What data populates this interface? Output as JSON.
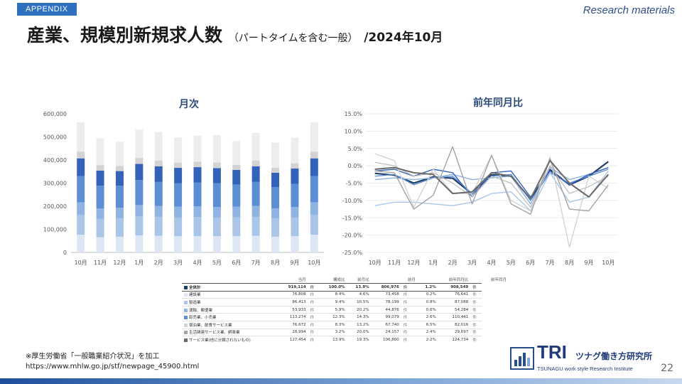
{
  "header": {
    "tag": "APPENDIX",
    "research_label": "Research materials",
    "title_main": "産業、規模別新規求人数",
    "title_sub": "（パートタイムを含む一般）",
    "title_date": "/2024年10月"
  },
  "chart_data": [
    {
      "type": "bar",
      "stacked": true,
      "title": "月次",
      "categories": [
        "10月",
        "11月",
        "12月",
        "1月",
        "2月",
        "3月",
        "4月",
        "5月",
        "6月",
        "7月",
        "8月",
        "9月",
        "10月"
      ],
      "ylim": [
        0,
        600000
      ],
      "yticks": [
        "0",
        "100,000",
        "200,000",
        "300,000",
        "400,000",
        "500,000",
        "600,000"
      ],
      "colors": [
        "#dde7f4",
        "#a9c6e8",
        "#8fb4e1",
        "#5d8ed3",
        "#3562b9",
        "#d3d3d3",
        "#ededed",
        "#a3a3a3",
        "#6b6b6b"
      ],
      "series": [
        {
          "values": [
            76808,
            66000,
            68000,
            74000,
            72000,
            70000,
            71000,
            70000,
            71000,
            72000,
            68000,
            70000,
            76808
          ]
        },
        {
          "values": [
            86413,
            79000,
            80000,
            83000,
            82000,
            81000,
            82000,
            81000,
            81000,
            82000,
            79000,
            81000,
            86413
          ]
        },
        {
          "values": [
            53933,
            45000,
            45000,
            48000,
            47000,
            47000,
            47000,
            46000,
            46000,
            47000,
            44000,
            46000,
            53933
          ]
        },
        {
          "values": [
            113274,
            99000,
            96000,
            108000,
            104000,
            102000,
            102000,
            102000,
            96000,
            104000,
            92000,
            100000,
            113274
          ]
        },
        {
          "values": [
            76672,
            65000,
            63000,
            70000,
            68000,
            66000,
            67000,
            66000,
            63000,
            68000,
            62000,
            66000,
            76672
          ]
        },
        {
          "values": [
            28994,
            24000,
            22000,
            26000,
            25000,
            23000,
            24000,
            24000,
            22000,
            25000,
            22000,
            23000,
            28994
          ]
        },
        {
          "values": [
            127454,
            116000,
            105000,
            122000,
            124000,
            109000,
            112000,
            119000,
            103000,
            119000,
            108000,
            111000,
            127454
          ]
        }
      ]
    },
    {
      "type": "line",
      "title": "前年同月比",
      "categories": [
        "10月",
        "11月",
        "12月",
        "1月",
        "2月",
        "3月",
        "4月",
        "5月",
        "6月",
        "7月",
        "8月",
        "9月",
        "10月"
      ],
      "ylim": [
        -25,
        15
      ],
      "yticks": [
        "15.0%",
        "10.0%",
        "5.0%",
        "0.0%",
        "-5.0%",
        "-10.0%",
        "-15.0%",
        "-20.0%",
        "-25.0%"
      ],
      "series": [
        {
          "color": "#1f3d66",
          "width": 2.2,
          "values": [
            -2.2,
            -2.7,
            -5.0,
            -3.2,
            -3.6,
            -8.1,
            -2.6,
            -3.0,
            -9.6,
            -1.1,
            -5.5,
            -3.0,
            1.2
          ]
        },
        {
          "color": "#5d8ed3",
          "width": 1.4,
          "values": [
            -3.0,
            -2.5,
            -5.5,
            -3.5,
            -3.0,
            -8.0,
            -3.0,
            -2.5,
            -10.0,
            -2.0,
            -5.0,
            -3.0,
            -1.0
          ]
        },
        {
          "color": "#a9c6e8",
          "width": 1.4,
          "values": [
            -11.5,
            -10.5,
            -10.5,
            -11.0,
            -11.5,
            -10.5,
            -8.0,
            -7.5,
            -13.0,
            -2.0,
            -10.5,
            -9.0,
            -1.5
          ]
        },
        {
          "color": "#8fb4e1",
          "width": 1.4,
          "values": [
            -4.0,
            -3.5,
            -4.0,
            -3.5,
            -2.5,
            -4.0,
            -3.5,
            -3.0,
            -11.0,
            -0.5,
            -4.0,
            -2.5,
            -0.5
          ]
        },
        {
          "color": "#3562b9",
          "width": 1.4,
          "values": [
            -1.5,
            -1.0,
            -3.0,
            -1.0,
            -2.0,
            -9.0,
            -2.0,
            -1.5,
            -9.0,
            -1.5,
            -5.5,
            -2.5,
            -0.5
          ]
        },
        {
          "color": "#d3d3d3",
          "width": 1.4,
          "values": [
            3.5,
            1.5,
            -12.0,
            -1.0,
            -8.0,
            -8.0,
            3.0,
            -10.0,
            -13.0,
            2.5,
            -23.5,
            -3.0,
            -6.5
          ]
        },
        {
          "color": "#bdbdbd",
          "width": 1.2,
          "values": [
            1.0,
            0.0,
            -3.0,
            -2.0,
            -5.0,
            -9.0,
            -3.0,
            -5.0,
            -12.0,
            0.0,
            -8.0,
            -6.0,
            -3.0
          ]
        },
        {
          "color": "#a3a3a3",
          "width": 1.4,
          "values": [
            -1.5,
            -2.0,
            -12.5,
            -8.5,
            5.5,
            -11.0,
            3.0,
            -11.0,
            -14.0,
            2.0,
            -12.5,
            -13.0,
            -5.5
          ]
        },
        {
          "color": "#6b6b6b",
          "width": 2.0,
          "values": [
            -1.0,
            -0.5,
            -2.0,
            -2.5,
            -8.0,
            -7.5,
            -2.0,
            -3.0,
            -9.5,
            1.5,
            -5.0,
            -9.0,
            -2.5
          ]
        }
      ]
    }
  ],
  "table": {
    "headers": [
      "",
      "当月",
      "",
      "構成比",
      "前月比",
      "",
      "前月",
      "",
      "前年同月比",
      "",
      "前年同月"
    ],
    "rows": [
      {
        "color": "#1f3d66",
        "label": "全体計",
        "values": [
          "919,114",
          "件",
          "100.0%",
          "13.9%",
          "806,976",
          "件",
          "1.2%",
          "908,549",
          "件"
        ]
      },
      {
        "color": "#dde7f4",
        "label": "建設業",
        "values": [
          "76,808",
          "件",
          "8.4%",
          "4.6%",
          "73,458",
          "件",
          "0.2%",
          "76,641",
          "件"
        ]
      },
      {
        "color": "#a9c6e8",
        "label": "製造業",
        "values": [
          "86,413",
          "件",
          "9.4%",
          "10.5%",
          "78,199",
          "件",
          "0.8%",
          "87,088",
          "件"
        ]
      },
      {
        "color": "#8fb4e1",
        "label": "運輸、郵便業",
        "values": [
          "53,933",
          "件",
          "5.9%",
          "20.2%",
          "44,876",
          "件",
          "0.6%",
          "54,284",
          "件"
        ]
      },
      {
        "color": "#5d8ed3",
        "label": "卸売業、小売業",
        "values": [
          "113,274",
          "件",
          "12.3%",
          "14.3%",
          "99,079",
          "件",
          "2.6%",
          "110,441",
          "件"
        ]
      },
      {
        "color": "#d3d3d3",
        "label": "宿泊業、飲食サービス業",
        "values": [
          "76,672",
          "件",
          "8.3%",
          "13.2%",
          "67,740",
          "件",
          "6.5%",
          "82,016",
          "件"
        ]
      },
      {
        "color": "#a3a3a3",
        "label": "生活関連サービス業、娯楽業",
        "values": [
          "28,994",
          "件",
          "3.2%",
          "20.0%",
          "24,157",
          "件",
          "2.4%",
          "29,697",
          "件"
        ]
      },
      {
        "color": "#6b6b6b",
        "label": "サービス業(他に分類されないもの)",
        "values": [
          "127,454",
          "件",
          "13.9%",
          "19.3%",
          "106,800",
          "件",
          "2.2%",
          "124,734",
          "件"
        ]
      }
    ]
  },
  "footer": {
    "source_line1": "※厚生労働省「一般職業紹介状況」を加工",
    "source_line2": "https://www.mhlw.go.jp/stf/newpage_45900.html",
    "logo_tri": "TRI",
    "logo_jp": "ツナグ働き方研究所",
    "logo_en": "TSUNAGU work style Research Institute",
    "page_number": "22"
  }
}
